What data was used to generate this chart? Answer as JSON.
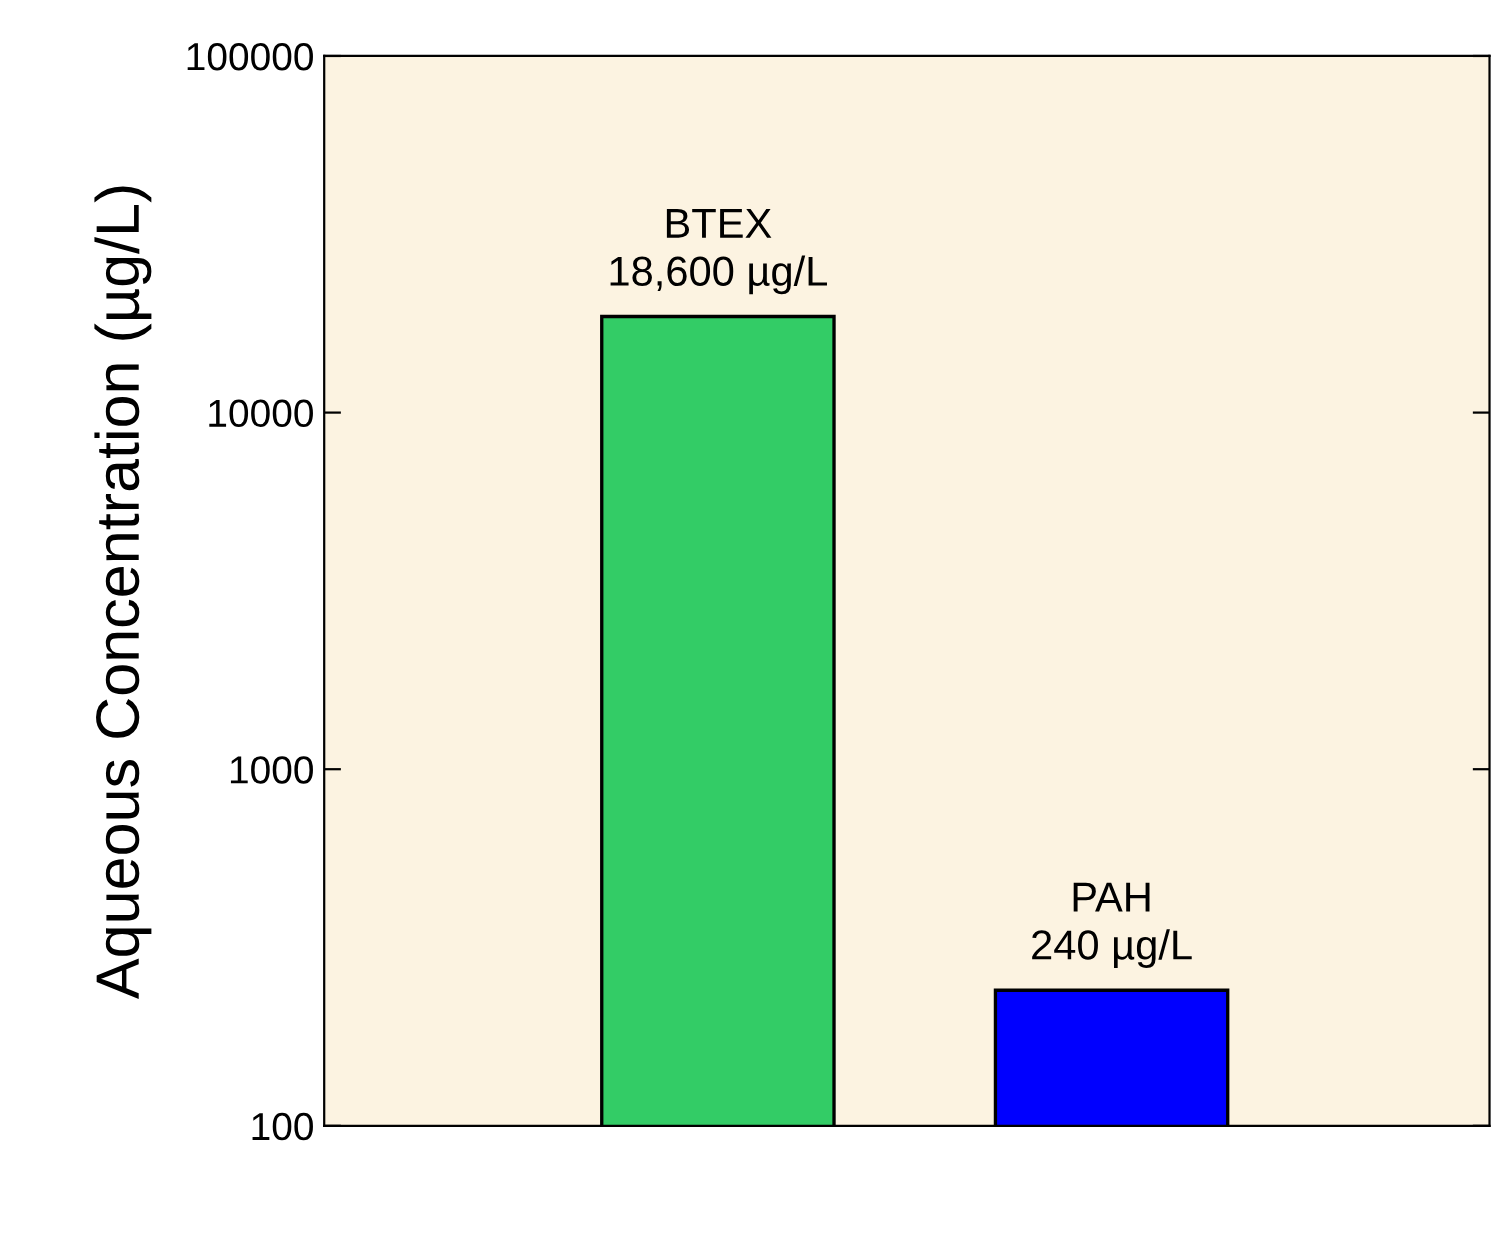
{
  "chart_data": {
    "type": "bar",
    "ylabel": "Aqueous Concentration (µg/L)",
    "categories": [
      "BTEX",
      "PAH"
    ],
    "values": [
      18600,
      240
    ],
    "colors": [
      "#33cc66",
      "#0000ff"
    ],
    "value_labels": [
      "18,600 µg/L",
      "240 µg/L"
    ],
    "log": true,
    "ylim": [
      100,
      100000
    ],
    "yticks": [
      100,
      1000,
      10000,
      100000
    ],
    "tick_labels": "y",
    "grid": false,
    "legend": false
  }
}
